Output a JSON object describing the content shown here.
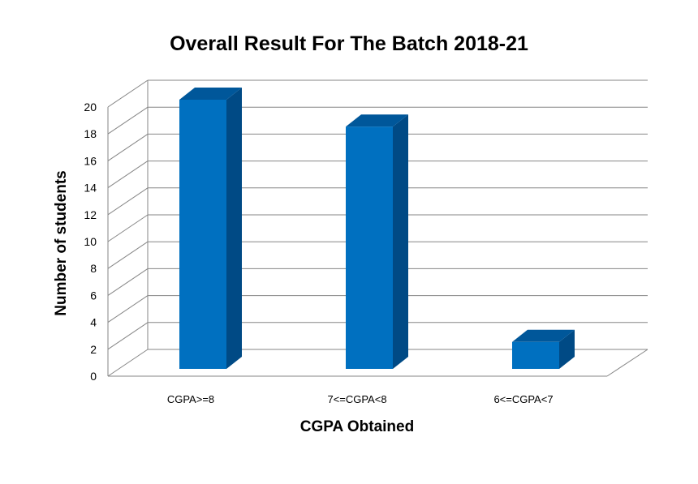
{
  "chart_data": {
    "type": "bar",
    "title": "Overall Result For The Batch 2018-21",
    "xlabel": "CGPA Obtained",
    "ylabel": "Number of students",
    "categories": [
      "CGPA>=8",
      "7<=CGPA<8",
      "6<=CGPA<7"
    ],
    "values": [
      20,
      18,
      2
    ],
    "ylim": [
      0,
      20
    ],
    "yticks": [
      0,
      2,
      4,
      6,
      8,
      10,
      12,
      14,
      16,
      18,
      20
    ],
    "grid": true,
    "legend": "none",
    "style": "3d-column",
    "colors": {
      "bar_front": "#0070c0",
      "bar_side": "#004a85",
      "bar_top": "#00579a",
      "grid": "#868686"
    }
  }
}
